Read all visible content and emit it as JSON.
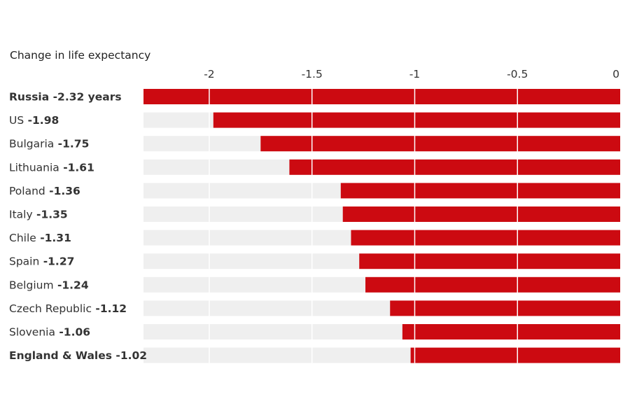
{
  "chart_data": {
    "type": "bar",
    "orientation": "horizontal",
    "title": "Change in life expectancy",
    "categories": [
      "Russia",
      "US",
      "Bulgaria",
      "Lithuania",
      "Poland",
      "Italy",
      "Chile",
      "Spain",
      "Belgium",
      "Czech Republic",
      "Slovenia",
      "England & Wales"
    ],
    "value_labels": [
      "-2.32 years",
      "-1.98",
      "-1.75",
      "-1.61",
      "-1.36",
      "-1.35",
      "-1.31",
      "-1.27",
      "-1.24",
      "-1.12",
      "-1.06",
      "-1.02"
    ],
    "highlighted": [
      "Russia",
      "England & Wales"
    ],
    "values": [
      -2.32,
      -1.98,
      -1.75,
      -1.61,
      -1.36,
      -1.35,
      -1.31,
      -1.27,
      -1.24,
      -1.12,
      -1.06,
      -1.02
    ],
    "xlim": [
      -2.32,
      0
    ],
    "xticks": [
      -2,
      -1.5,
      -1,
      -0.5,
      0
    ],
    "xtick_labels": [
      "-2",
      "-1.5",
      "-1",
      "-0.5",
      "0"
    ],
    "axis_position": "top",
    "grid": true,
    "colors": {
      "bar": "#cc0a11",
      "track": "#efefef",
      "grid": "#ffffff",
      "text": "#333333"
    }
  }
}
